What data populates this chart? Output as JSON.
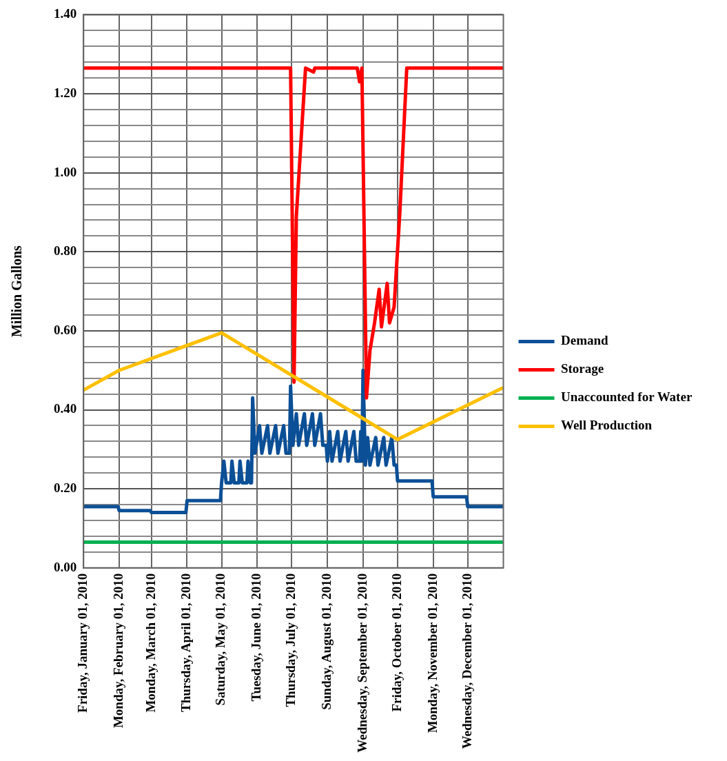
{
  "chart_data": {
    "type": "line",
    "ylabel": "Million Gallons",
    "xlim": [
      "2010-01-01",
      "2011-01-01"
    ],
    "xticks": [
      {
        "value": "2010-01-01",
        "label": "Friday, January 01, 2010"
      },
      {
        "value": "2010-02-01",
        "label": "Monday, February 01, 2010"
      },
      {
        "value": "2010-03-01",
        "label": "Monday, March 01, 2010"
      },
      {
        "value": "2010-04-01",
        "label": "Thursday, April 01, 2010"
      },
      {
        "value": "2010-05-01",
        "label": "Saturday, May 01, 2010"
      },
      {
        "value": "2010-06-01",
        "label": "Tuesday, June 01, 2010"
      },
      {
        "value": "2010-07-01",
        "label": "Thursday, July 01, 2010"
      },
      {
        "value": "2010-08-01",
        "label": "Sunday, August 01, 2010"
      },
      {
        "value": "2010-09-01",
        "label": "Wednesday, September 01, 2010"
      },
      {
        "value": "2010-10-01",
        "label": "Friday, October 01, 2010"
      },
      {
        "value": "2010-11-01",
        "label": "Monday, November 01, 2010"
      },
      {
        "value": "2010-12-01",
        "label": "Wednesday, December 01, 2010"
      }
    ],
    "ylim": [
      0,
      1.4
    ],
    "yticks": [
      {
        "value": 0,
        "label": "0.00"
      },
      {
        "value": 0.04,
        "label": null
      },
      {
        "value": 0.08,
        "label": null
      },
      {
        "value": 0.12,
        "label": null
      },
      {
        "value": 0.16,
        "label": null
      },
      {
        "value": 0.2,
        "label": "0.20"
      },
      {
        "value": 0.24,
        "label": null
      },
      {
        "value": 0.28,
        "label": null
      },
      {
        "value": 0.32,
        "label": null
      },
      {
        "value": 0.36,
        "label": null
      },
      {
        "value": 0.4,
        "label": "0.40"
      },
      {
        "value": 0.44,
        "label": null
      },
      {
        "value": 0.48,
        "label": null
      },
      {
        "value": 0.52,
        "label": null
      },
      {
        "value": 0.56,
        "label": null
      },
      {
        "value": 0.6,
        "label": "0.60"
      },
      {
        "value": 0.64,
        "label": null
      },
      {
        "value": 0.68,
        "label": null
      },
      {
        "value": 0.72,
        "label": null
      },
      {
        "value": 0.76,
        "label": null
      },
      {
        "value": 0.8,
        "label": "0.80"
      },
      {
        "value": 0.84,
        "label": null
      },
      {
        "value": 0.88,
        "label": null
      },
      {
        "value": 0.92,
        "label": null
      },
      {
        "value": 0.96,
        "label": null
      },
      {
        "value": 1.0,
        "label": "1.00"
      },
      {
        "value": 1.04,
        "label": null
      },
      {
        "value": 1.08,
        "label": null
      },
      {
        "value": 1.12,
        "label": null
      },
      {
        "value": 1.16,
        "label": null
      },
      {
        "value": 1.2,
        "label": "1.20"
      },
      {
        "value": 1.24,
        "label": null
      },
      {
        "value": 1.28,
        "label": null
      },
      {
        "value": 1.32,
        "label": null
      },
      {
        "value": 1.36,
        "label": null
      },
      {
        "value": 1.4,
        "label": "1.40"
      }
    ],
    "grid": true,
    "legend": "right",
    "marker": "none",
    "line_style": "solid",
    "series": [
      {
        "name": "Demand",
        "color": "#0b4f96",
        "x": [
          "2010-01-01",
          "2010-01-31",
          "2010-02-01",
          "2010-02-28",
          "2010-03-01",
          "2010-03-31",
          "2010-04-01",
          "2010-04-30",
          "2010-05-01",
          "2010-05-03",
          "2010-05-05",
          "2010-05-09",
          "2010-05-10",
          "2010-05-12",
          "2010-05-16",
          "2010-05-17",
          "2010-05-19",
          "2010-05-23",
          "2010-05-24",
          "2010-05-26",
          "2010-05-27",
          "2010-05-28",
          "2010-05-30",
          "2010-06-03",
          "2010-06-05",
          "2010-06-10",
          "2010-06-12",
          "2010-06-17",
          "2010-06-19",
          "2010-06-24",
          "2010-06-26",
          "2010-06-29",
          "2010-06-30",
          "2010-07-02",
          "2010-07-05",
          "2010-07-07",
          "2010-07-12",
          "2010-07-14",
          "2010-07-19",
          "2010-07-21",
          "2010-07-26",
          "2010-07-28",
          "2010-07-31",
          "2010-08-01",
          "2010-08-03",
          "2010-08-05",
          "2010-08-10",
          "2010-08-12",
          "2010-08-17",
          "2010-08-19",
          "2010-08-24",
          "2010-08-26",
          "2010-08-29",
          "2010-08-30",
          "2010-08-31",
          "2010-09-01",
          "2010-09-03",
          "2010-09-05",
          "2010-09-07",
          "2010-09-12",
          "2010-09-14",
          "2010-09-19",
          "2010-09-21",
          "2010-09-26",
          "2010-09-28",
          "2010-09-30",
          "2010-10-01",
          "2010-10-31",
          "2010-11-01",
          "2010-11-30",
          "2010-12-01",
          "2010-12-31"
        ],
        "values": [
          0.155,
          0.155,
          0.145,
          0.145,
          0.14,
          0.14,
          0.17,
          0.17,
          0.215,
          0.27,
          0.215,
          0.215,
          0.27,
          0.215,
          0.215,
          0.27,
          0.215,
          0.215,
          0.27,
          0.215,
          0.215,
          0.43,
          0.29,
          0.36,
          0.29,
          0.36,
          0.29,
          0.36,
          0.29,
          0.36,
          0.29,
          0.29,
          0.46,
          0.31,
          0.39,
          0.31,
          0.39,
          0.31,
          0.39,
          0.31,
          0.39,
          0.31,
          0.31,
          0.27,
          0.345,
          0.27,
          0.345,
          0.27,
          0.345,
          0.27,
          0.345,
          0.27,
          0.27,
          0.345,
          0.27,
          0.5,
          0.26,
          0.33,
          0.26,
          0.33,
          0.26,
          0.33,
          0.26,
          0.33,
          0.26,
          0.26,
          0.22,
          0.22,
          0.18,
          0.18,
          0.155,
          0.155
        ]
      },
      {
        "name": "Storage",
        "color": "#ff0000",
        "x": [
          "2010-01-01",
          "2010-06-30",
          "2010-07-03",
          "2010-07-05",
          "2010-07-13",
          "2010-07-20",
          "2010-07-21",
          "2010-08-27",
          "2010-08-29",
          "2010-08-31",
          "2010-09-04",
          "2010-09-07",
          "2010-09-11",
          "2010-09-15",
          "2010-09-17",
          "2010-09-22",
          "2010-09-24",
          "2010-09-28",
          "2010-10-03",
          "2010-10-09",
          "2010-12-31"
        ],
        "values": [
          1.265,
          1.265,
          0.47,
          0.89,
          1.265,
          1.255,
          1.265,
          1.265,
          1.23,
          1.265,
          0.43,
          0.55,
          0.62,
          0.705,
          0.61,
          0.72,
          0.62,
          0.66,
          0.9,
          1.265,
          1.265
        ]
      },
      {
        "name": "Unaccounted for Water",
        "color": "#00b050",
        "x": [
          "2010-01-01",
          "2010-12-31"
        ],
        "values": [
          0.065,
          0.065
        ]
      },
      {
        "name": "Well Production",
        "color": "#ffc000",
        "x": [
          "2010-01-01",
          "2010-02-01",
          "2010-05-01",
          "2010-10-01",
          "2010-12-31"
        ],
        "values": [
          0.45,
          0.5,
          0.595,
          0.325,
          0.455
        ]
      }
    ]
  }
}
